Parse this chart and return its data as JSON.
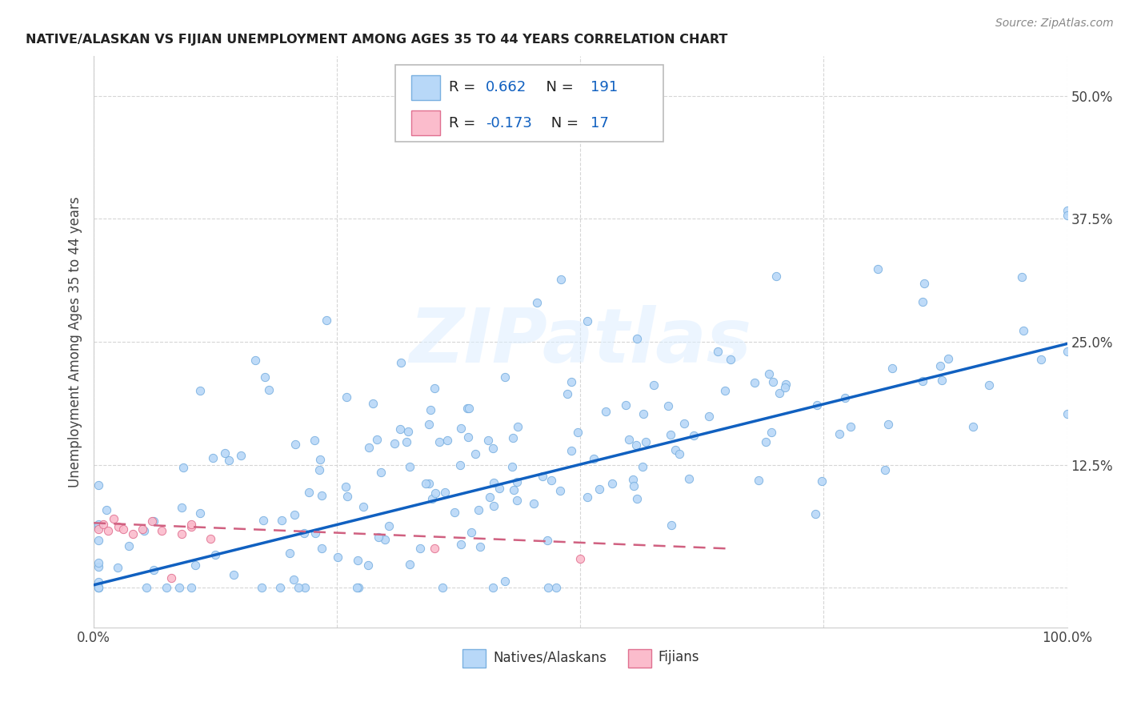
{
  "title": "NATIVE/ALASKAN VS FIJIAN UNEMPLOYMENT AMONG AGES 35 TO 44 YEARS CORRELATION CHART",
  "source": "Source: ZipAtlas.com",
  "ylabel": "Unemployment Among Ages 35 to 44 years",
  "xlim": [
    0,
    1.0
  ],
  "ylim": [
    -0.04,
    0.54
  ],
  "native_R": 0.662,
  "native_N": 191,
  "fijian_R": -0.173,
  "fijian_N": 17,
  "native_color": "#b8d8f8",
  "native_edge": "#7ab0e0",
  "fijian_color": "#fbbccc",
  "fijian_edge": "#e07090",
  "trend_native_color": "#1060c0",
  "trend_fijian_color": "#d06080",
  "background_color": "#ffffff",
  "watermark": "ZIPatlas",
  "seed": 1234
}
